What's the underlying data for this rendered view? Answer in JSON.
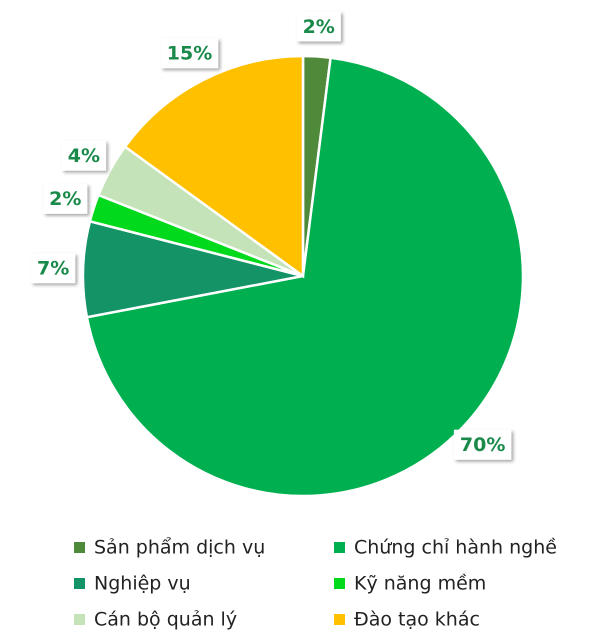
{
  "chart_data": {
    "type": "pie",
    "categories": [
      "Sản phẩm dịch vụ",
      "Chứng chỉ hành nghề",
      "Nghiệp vụ",
      "Kỹ năng mềm",
      "Cán bộ quản lý",
      "Đào tạo khác"
    ],
    "values": [
      2,
      70,
      7,
      2,
      4,
      15
    ],
    "value_labels": [
      "2%",
      "70%",
      "7%",
      "2%",
      "4%",
      "15%"
    ],
    "colors": [
      "#4e8a3a",
      "#00b050",
      "#139366",
      "#00d91c",
      "#c5e3b8",
      "#ffc000"
    ],
    "legend": "bottom"
  }
}
